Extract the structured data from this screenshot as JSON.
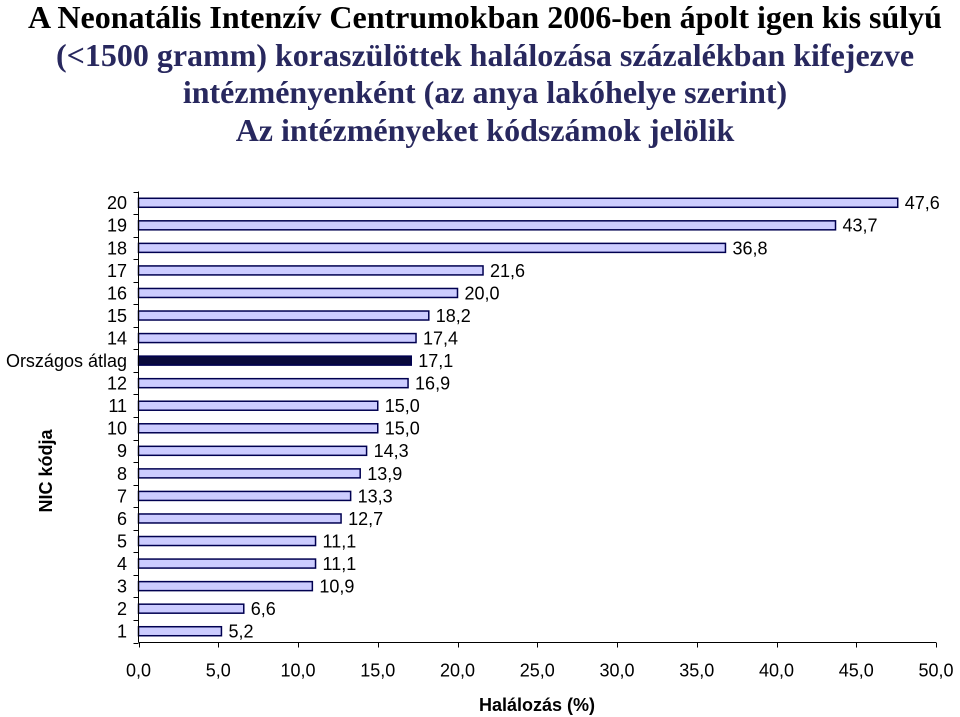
{
  "title": {
    "lines": [
      "A Neonatális Intenzív Centrumokban 2006-ben ápolt igen kis súlyú",
      "(<1500 gramm) koraszülöttek halálozása százalékban kifejezve",
      "intézményenként (az anya lakóhelye szerint)",
      "Az intézményeket kódszámok jelölik"
    ]
  },
  "colors": {
    "title_first_line": "#000000",
    "title": "#28285e",
    "bar_stroke": "#000050",
    "axis": "#000000",
    "background": "#ffffff"
  },
  "chart_data": {
    "type": "bar",
    "orientation": "horizontal",
    "categories": [
      "20",
      "19",
      "18",
      "17",
      "16",
      "15",
      "14",
      "Országos átlag",
      "12",
      "11",
      "10",
      "9",
      "8",
      "7",
      "6",
      "5",
      "4",
      "3",
      "2",
      "1"
    ],
    "values": [
      47.6,
      43.7,
      36.8,
      21.6,
      20.0,
      18.2,
      17.4,
      17.1,
      16.9,
      15.0,
      15.0,
      14.3,
      13.9,
      13.3,
      12.7,
      11.1,
      11.1,
      10.9,
      6.6,
      5.2
    ],
    "value_labels": [
      "47,6",
      "43,7",
      "36,8",
      "21,6",
      "20,0",
      "18,2",
      "17,4",
      "17,1",
      "16,9",
      "15,0",
      "15,0",
      "14,3",
      "13,9",
      "13,3",
      "12,7",
      "11,1",
      "11,1",
      "10,9",
      "6,6",
      "5,2"
    ],
    "bar_fills": [
      "#ccccff",
      "#ccccff",
      "#ccccff",
      "#ccccff",
      "#ccccff",
      "#ccccff",
      "#ccccff",
      "#0a0a3c",
      "#ccccff",
      "#ccccff",
      "#ccccff",
      "#ccccff",
      "#ccccff",
      "#ccccff",
      "#ccccff",
      "#ccccff",
      "#ccccff",
      "#ccccff",
      "#ccccff",
      "#ccccff"
    ],
    "xlabel": "Halálozás (%)",
    "ylabel": "NIC kódja",
    "xlim": [
      0,
      50
    ],
    "xticks": [
      0,
      5,
      10,
      15,
      20,
      25,
      30,
      35,
      40,
      45,
      50
    ],
    "xtick_labels": [
      "0,0",
      "5,0",
      "10,0",
      "15,0",
      "20,0",
      "25,0",
      "30,0",
      "35,0",
      "40,0",
      "45,0",
      "50,0"
    ],
    "grid": false
  }
}
